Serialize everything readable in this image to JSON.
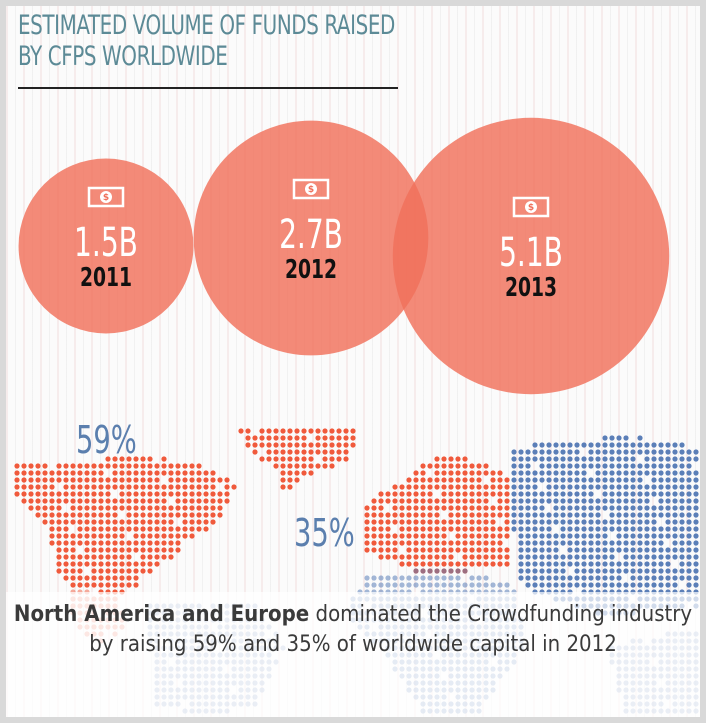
{
  "title_line1": "Estimated volume of funds raised",
  "title_line2": "by CFPs worldwide",
  "chart_data": {
    "type": "bubble",
    "title": "Estimated volume of funds raised by CFPs worldwide",
    "categories": [
      "2011",
      "2012",
      "2013"
    ],
    "values": [
      1.5,
      2.7,
      5.1
    ],
    "value_labels": [
      "1.5B",
      "2.7B",
      "5.1B"
    ],
    "unit": "B",
    "icon": "dollar-bill-icon",
    "color": "#f0705a"
  },
  "map": {
    "north_america_label": "59%",
    "europe_label": "35%",
    "highlight_color": "#f05a3c",
    "other_color": "#5b7fb8"
  },
  "caption": {
    "bold": "North America and Europe",
    "rest": " dominated the Crowdfunding industry by raising 59% and 35% of worldwide capital in 2012"
  }
}
